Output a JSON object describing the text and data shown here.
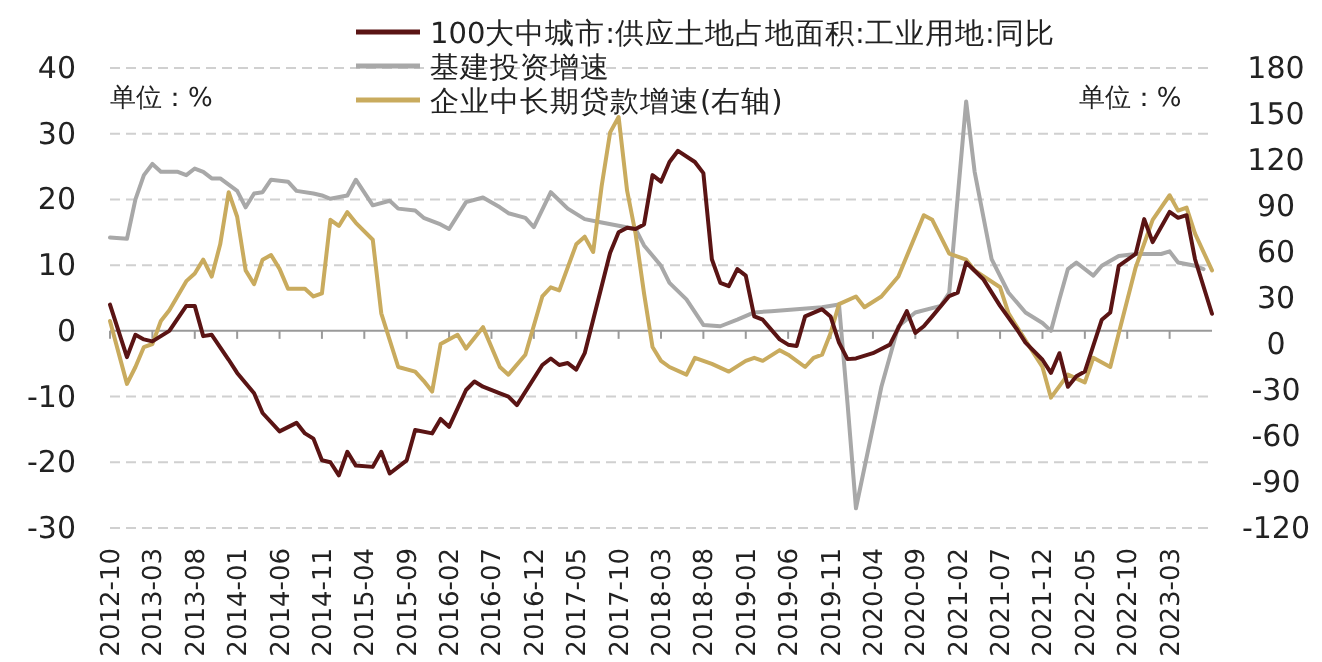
{
  "chart_data": {
    "type": "line",
    "legend": "top",
    "grid": "y",
    "xlim": [
      "2012-10",
      "2023-08"
    ],
    "xticks": [
      "2012-10",
      "2013-03",
      "2013-08",
      "2014-01",
      "2014-06",
      "2014-11",
      "2015-04",
      "2015-09",
      "2016-02",
      "2016-07",
      "2016-12",
      "2017-05",
      "2017-10",
      "2018-03",
      "2018-08",
      "2019-01",
      "2019-06",
      "2019-11",
      "2020-04",
      "2020-09",
      "2021-02",
      "2021-07",
      "2021-12",
      "2022-05",
      "2022-10",
      "2023-03"
    ],
    "ylim": [
      -30,
      40
    ],
    "yticks": [
      -30,
      -20,
      -10,
      0,
      10,
      20,
      30,
      40
    ],
    "y2lim": [
      -120,
      180
    ],
    "y2ticks": [
      -120,
      -90,
      -60,
      -30,
      0,
      30,
      60,
      90,
      120,
      150,
      180
    ],
    "annotations": [
      "单位：%",
      "单位：%"
    ],
    "series": [
      {
        "name": "100大中城市:供应土地占地面积:工业用地:同比",
        "color": "#5a1414",
        "x": [
          "2012-10",
          "2012-12",
          "2013-01",
          "2013-02",
          "2013-03",
          "2013-05",
          "2013-07",
          "2013-08",
          "2013-09",
          "2013-10",
          "2013-12",
          "2014-01",
          "2014-03",
          "2014-04",
          "2014-06",
          "2014-08",
          "2014-09",
          "2014-10",
          "2014-11",
          "2014-12",
          "2015-01",
          "2015-02",
          "2015-03",
          "2015-05",
          "2015-06",
          "2015-07",
          "2015-09",
          "2015-10",
          "2015-12",
          "2016-01",
          "2016-02",
          "2016-04",
          "2016-05",
          "2016-06",
          "2016-08",
          "2016-09",
          "2016-10",
          "2017-01",
          "2017-02",
          "2017-03",
          "2017-04",
          "2017-05",
          "2017-06",
          "2017-07",
          "2017-09",
          "2017-10",
          "2017-11",
          "2017-12",
          "2018-01",
          "2018-02",
          "2018-03",
          "2018-04",
          "2018-05",
          "2018-07",
          "2018-08",
          "2018-09",
          "2018-10",
          "2018-11",
          "2018-12",
          "2019-01",
          "2019-02",
          "2019-03",
          "2019-05",
          "2019-06",
          "2019-07",
          "2019-08",
          "2019-10",
          "2019-11",
          "2019-12",
          "2020-01",
          "2020-02",
          "2020-04",
          "2020-06",
          "2020-08",
          "2020-09",
          "2020-10",
          "2020-11",
          "2021-01",
          "2021-02",
          "2021-03",
          "2021-05",
          "2021-07",
          "2021-09",
          "2021-10",
          "2021-12",
          "2022-01",
          "2022-02",
          "2022-03",
          "2022-04",
          "2022-05",
          "2022-07",
          "2022-08",
          "2022-09",
          "2022-11",
          "2022-12",
          "2023-01",
          "2023-03",
          "2023-04",
          "2023-05",
          "2023-06",
          "2023-08"
        ],
        "values": [
          4,
          -4,
          -0.6,
          -1.3,
          -1.6,
          0,
          3.8,
          3.8,
          -0.8,
          -0.6,
          -4.4,
          -6.4,
          -9.5,
          -12.5,
          -15.3,
          -14,
          -15.6,
          -16.4,
          -19.7,
          -20,
          -22,
          -18.4,
          -20.5,
          -20.7,
          -18.4,
          -21.7,
          -19.7,
          -15.1,
          -15.6,
          -13.4,
          -14.6,
          -9,
          -7.7,
          -8.5,
          -9.5,
          -10,
          -11.3,
          -5.2,
          -4.2,
          -5.2,
          -4.9,
          -5.9,
          -3.4,
          1.7,
          11.9,
          15,
          15.7,
          15.5,
          16.2,
          23.7,
          22.7,
          25.7,
          27.4,
          25.7,
          24,
          10.9,
          7.3,
          6.8,
          9.4,
          8.4,
          2.2,
          1.7,
          -1.3,
          -2.1,
          -2.3,
          2.2,
          3.3,
          2.2,
          -1.8,
          -4.3,
          -4.2,
          -3.4,
          -2.1,
          3,
          -0.3,
          0.7,
          2.2,
          5.3,
          5.8,
          10.4,
          7.9,
          3.8,
          0.2,
          -1.8,
          -4.4,
          -6.4,
          -3.4,
          -8.5,
          -6.9,
          -6.2,
          1.7,
          2.8,
          9.9,
          11.7,
          17,
          13.5,
          18.1,
          17.2,
          17.6,
          10.9,
          2.6
        ]
      },
      {
        "name": "基建投资增速",
        "color": "#a8a8a8",
        "x": [
          "2012-10",
          "2012-12",
          "2013-01",
          "2013-02",
          "2013-03",
          "2013-04",
          "2013-06",
          "2013-07",
          "2013-08",
          "2013-09",
          "2013-10",
          "2013-11",
          "2014-01",
          "2014-02",
          "2014-03",
          "2014-04",
          "2014-05",
          "2014-07",
          "2014-08",
          "2014-10",
          "2014-11",
          "2014-12",
          "2015-02",
          "2015-03",
          "2015-05",
          "2015-07",
          "2015-08",
          "2015-10",
          "2015-11",
          "2016-01",
          "2016-02",
          "2016-04",
          "2016-06",
          "2016-08",
          "2016-09",
          "2016-11",
          "2016-12",
          "2017-02",
          "2017-04",
          "2017-06",
          "2017-08",
          "2017-10",
          "2017-12",
          "2018-01",
          "2018-03",
          "2018-04",
          "2018-06",
          "2018-08",
          "2018-10",
          "2018-12",
          "2019-02",
          "2019-04",
          "2019-07",
          "2019-10",
          "2019-12",
          "2020-01",
          "2020-02",
          "2020-05",
          "2020-07",
          "2020-09",
          "2020-12",
          "2021-01",
          "2021-03",
          "2021-04",
          "2021-06",
          "2021-08",
          "2021-10",
          "2021-12",
          "2022-01",
          "2022-02",
          "2022-03",
          "2022-04",
          "2022-06",
          "2022-07",
          "2022-09",
          "2022-11",
          "2023-02",
          "2023-03",
          "2023-04",
          "2023-06",
          "2023-07"
        ],
        "values": [
          14.2,
          14,
          20,
          23.7,
          25.4,
          24.2,
          24.2,
          23.7,
          24.7,
          24.2,
          23.2,
          23.2,
          21.3,
          18.8,
          20.9,
          21.1,
          23,
          22.7,
          21.3,
          20.9,
          20.6,
          20.1,
          20.6,
          23,
          19.1,
          19.8,
          18.6,
          18.3,
          17.2,
          16.2,
          15.5,
          19.6,
          20.3,
          18.8,
          17.9,
          17.2,
          15.8,
          21.1,
          18.6,
          17,
          16.5,
          16,
          15.5,
          13,
          9.9,
          7.3,
          4.8,
          0.9,
          0.7,
          1.7,
          2.8,
          3,
          3.3,
          3.6,
          4,
          -11,
          -27,
          -8.5,
          0.7,
          2.8,
          3.8,
          5.8,
          34.9,
          24.2,
          10.9,
          5.8,
          2.8,
          1.2,
          0,
          4.8,
          9.4,
          10.4,
          8.4,
          9.9,
          11.4,
          11.7,
          11.7,
          12.1,
          10.4,
          9.9,
          9.4
        ]
      },
      {
        "name": "企业中长期贷款增速(右轴)",
        "color": "#c9ab5e",
        "axis": "y2",
        "x": [
          "2012-10",
          "2012-12",
          "2013-01",
          "2013-02",
          "2013-03",
          "2013-04",
          "2013-05",
          "2013-07",
          "2013-08",
          "2013-09",
          "2013-10",
          "2013-11",
          "2013-12",
          "2014-01",
          "2014-02",
          "2014-03",
          "2014-04",
          "2014-05",
          "2014-06",
          "2014-07",
          "2014-09",
          "2014-10",
          "2014-11",
          "2014-12",
          "2015-01",
          "2015-02",
          "2015-03",
          "2015-05",
          "2015-06",
          "2015-08",
          "2015-10",
          "2015-11",
          "2015-12",
          "2016-01",
          "2016-03",
          "2016-04",
          "2016-06",
          "2016-08",
          "2016-09",
          "2016-11",
          "2017-01",
          "2017-02",
          "2017-03",
          "2017-05",
          "2017-06",
          "2017-07",
          "2017-08",
          "2017-09",
          "2017-10",
          "2017-11",
          "2017-12",
          "2018-01",
          "2018-02",
          "2018-03",
          "2018-04",
          "2018-06",
          "2018-07",
          "2018-09",
          "2018-11",
          "2019-01",
          "2019-02",
          "2019-03",
          "2019-05",
          "2019-06",
          "2019-08",
          "2019-09",
          "2019-10",
          "2019-11",
          "2019-12",
          "2020-02",
          "2020-03",
          "2020-05",
          "2020-07",
          "2020-10",
          "2020-11",
          "2021-01",
          "2021-03",
          "2021-04",
          "2021-07",
          "2021-08",
          "2021-09",
          "2021-12",
          "2022-01",
          "2022-03",
          "2022-05",
          "2022-06",
          "2022-08",
          "2022-09",
          "2022-11",
          "2023-01",
          "2023-03",
          "2023-04",
          "2023-05",
          "2023-06",
          "2023-08"
        ],
        "values": [
          15,
          -26,
          -15,
          -2,
          0,
          15,
          22,
          41,
          46,
          55,
          44,
          65,
          99,
          83,
          48,
          39,
          55,
          58,
          49,
          36,
          36,
          31,
          33,
          81,
          77,
          86,
          79,
          68,
          20,
          -15,
          -18,
          -24,
          -31,
          0,
          6,
          -3,
          11,
          -15,
          -20,
          -7,
          31,
          37,
          35,
          65,
          70,
          60,
          103,
          138,
          148,
          100,
          72,
          33,
          -2,
          -11,
          -15,
          -20,
          -9,
          -13,
          -18,
          -11,
          -9,
          -11,
          -4,
          -7,
          -15,
          -9,
          -7,
          7,
          26,
          31,
          24,
          31,
          44,
          84,
          81,
          59,
          55,
          48,
          37,
          20,
          11,
          -15,
          -35,
          -20,
          -25,
          -9,
          -15,
          7,
          50,
          81,
          97,
          87,
          89,
          72,
          48
        ]
      }
    ]
  }
}
